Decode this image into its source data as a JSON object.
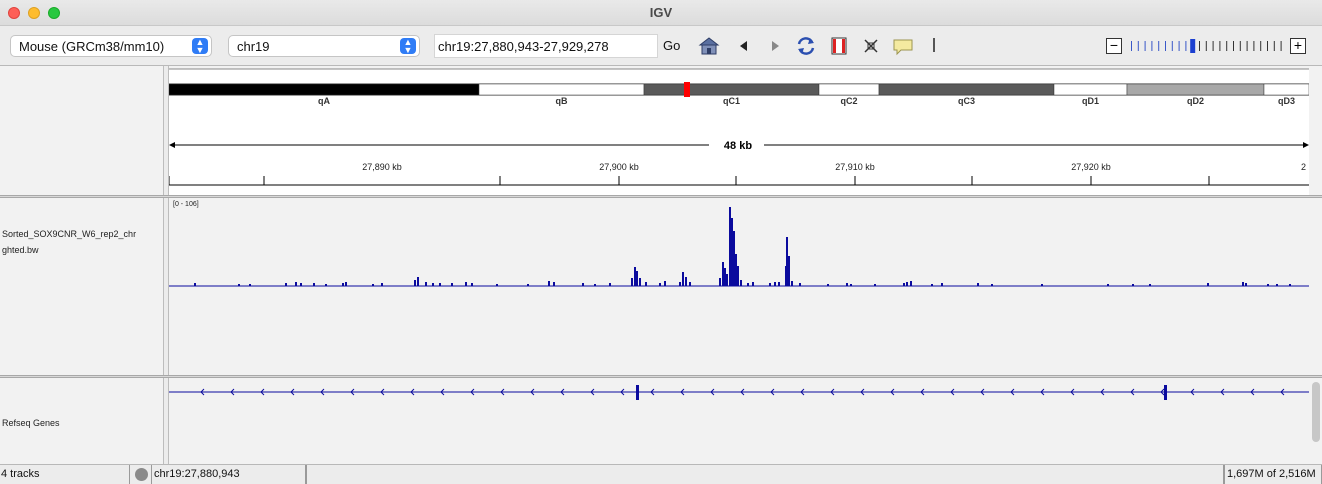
{
  "window": {
    "title": "IGV"
  },
  "toolbar": {
    "genome": "Mouse (GRCm38/mm10)",
    "chromosome": "chr19",
    "locus": "chr19:27,880,943-27,929,278",
    "go_label": "Go",
    "icons": [
      "home-icon",
      "back-icon",
      "forward-icon",
      "refresh-icon",
      "roi-icon",
      "fit-icon",
      "popup-info-icon",
      "divider"
    ],
    "zoom_level": 9,
    "zoom_levels": 23
  },
  "ideogram": {
    "bands": [
      "qA",
      "qB",
      "qC1",
      "qC2",
      "qC3",
      "qD1",
      "qD2",
      "qD3"
    ]
  },
  "ruler": {
    "span_label": "48 kb",
    "ticks": [
      "27,890 kb",
      "27,900 kb",
      "27,910 kb",
      "27,920 kb",
      "2"
    ]
  },
  "tracks": {
    "signal": {
      "name_line1": "Sorted_SOX9CNR_W6_rep2_chr",
      "name_line2": "ghted.bw",
      "range": "[0 - 106]"
    },
    "genes": {
      "name": "Refseq Genes"
    }
  },
  "status": {
    "tracks": "4 tracks",
    "position": "chr19:27,880,943",
    "memory": "1,697M of 2,516M"
  },
  "colors": {
    "signal": "#0b0b9e",
    "accent": "#2f7cf6",
    "ideogram_marker": "#ff0000"
  }
}
